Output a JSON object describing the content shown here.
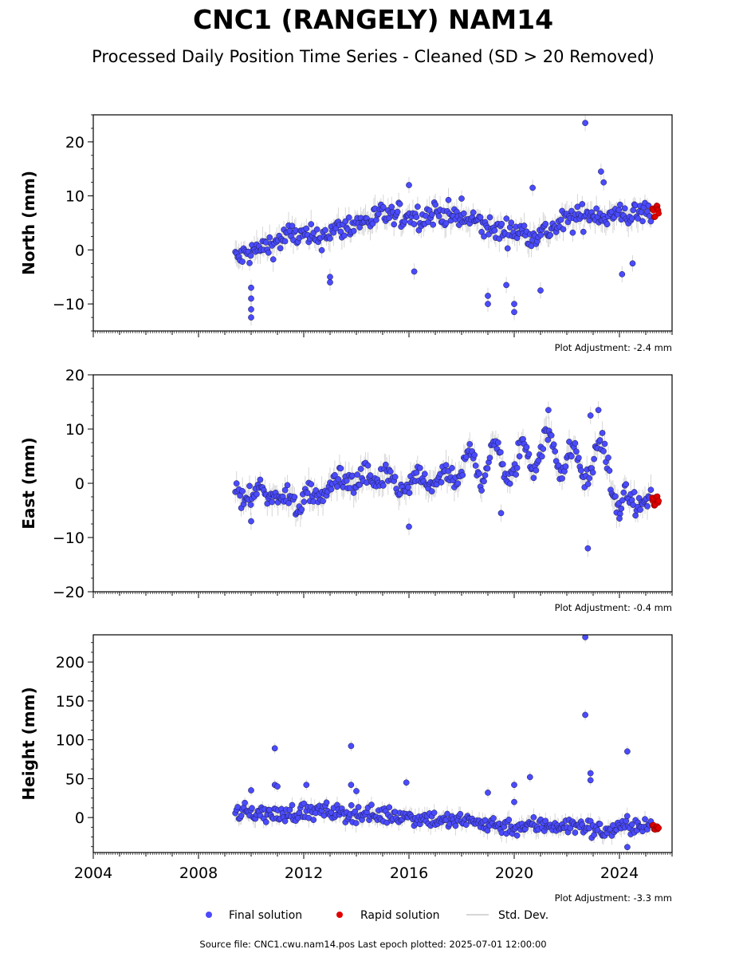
{
  "title": "CNC1 (RANGELY) NAM14",
  "subtitle": "Processed Daily Position Time Series - Cleaned (SD > 20 Removed)",
  "footer": "Source file: CNC1.cwu.nam14.pos  Last epoch plotted: 2025-07-01 12:00:00",
  "legend": {
    "final_label": "Final solution",
    "rapid_label": "Rapid solution",
    "std_label": "Std. Dev."
  },
  "colors": {
    "final": "#4a4aff",
    "rapid": "#e00000",
    "std": "#b4b4b4",
    "marker_edge": "#1a1a40"
  },
  "chart_data": [
    {
      "type": "scatter",
      "ylabel": "North (mm)",
      "adjustment": "Plot Adjustment: -2.4 mm",
      "xlim": [
        2004,
        2026
      ],
      "ylim": [
        -15,
        25
      ],
      "yticks": [
        -10,
        0,
        10,
        20
      ],
      "ytick_labels": [
        "−10",
        "0",
        "10",
        "20"
      ],
      "series": [
        {
          "name": "Final solution",
          "style": "final",
          "x": [
            2009.5,
            2010.0,
            2010.5,
            2011.0,
            2011.5,
            2012.0,
            2012.5,
            2013.0,
            2013.5,
            2014.0,
            2014.5,
            2015.0,
            2015.5,
            2016.0,
            2016.5,
            2017.0,
            2017.5,
            2018.0,
            2018.5,
            2019.0,
            2019.5,
            2020.0,
            2020.5,
            2021.0,
            2021.5,
            2022.0,
            2022.5,
            2023.0,
            2023.5,
            2024.0,
            2024.5,
            2025.0
          ],
          "y": [
            -1.5,
            -0.5,
            0.5,
            1.5,
            3.0,
            2.5,
            2.0,
            3.5,
            4.0,
            5.0,
            5.5,
            6.5,
            6.0,
            6.5,
            6.0,
            7.0,
            6.5,
            5.5,
            5.5,
            4.0,
            3.5,
            3.5,
            3.0,
            3.0,
            4.0,
            5.5,
            6.0,
            7.0,
            6.0,
            6.5,
            6.5,
            7.0
          ]
        },
        {
          "name": "Rapid solution",
          "style": "rapid",
          "x": [
            2025.25,
            2025.32,
            2025.4,
            2025.45
          ],
          "y": [
            7.5,
            6.5,
            8.0,
            7.0
          ]
        }
      ],
      "outliers": {
        "x": [
          2010.0,
          2010.0,
          2010.0,
          2010.0,
          2013.0,
          2013.0,
          2016.0,
          2016.2,
          2018.0,
          2019.0,
          2019.0,
          2019.7,
          2020.0,
          2020.0,
          2020.7,
          2021.0,
          2022.7,
          2023.3,
          2023.4,
          2024.1,
          2024.5
        ],
        "y": [
          -12.5,
          -11.0,
          -9.0,
          -7.0,
          -6.0,
          -5.0,
          12.0,
          -4.0,
          9.5,
          -10.0,
          -8.5,
          -6.5,
          -11.5,
          -10.0,
          11.5,
          -7.5,
          23.5,
          14.5,
          12.5,
          -4.5,
          -2.5
        ]
      }
    },
    {
      "type": "scatter",
      "ylabel": "East (mm)",
      "adjustment": "Plot Adjustment: -0.4 mm",
      "xlim": [
        2004,
        2026
      ],
      "ylim": [
        -20,
        20
      ],
      "yticks": [
        -20,
        -10,
        0,
        10,
        20
      ],
      "ytick_labels": [
        "−20",
        "−10",
        "0",
        "10",
        "20"
      ],
      "series": [
        {
          "name": "Final solution",
          "style": "final",
          "x": [
            2009.5,
            2010.0,
            2010.5,
            2011.0,
            2011.5,
            2012.0,
            2012.5,
            2013.0,
            2013.5,
            2014.0,
            2014.5,
            2015.0,
            2015.5,
            2016.0,
            2016.5,
            2017.0,
            2017.5,
            2018.0,
            2018.5,
            2019.0,
            2019.5,
            2020.0,
            2020.5,
            2021.0,
            2021.5,
            2022.0,
            2022.5,
            2023.0,
            2023.5,
            2024.0,
            2024.5,
            2025.0
          ],
          "y": [
            -2.0,
            -2.5,
            -1.5,
            -2.5,
            -3.0,
            -3.5,
            -2.0,
            -1.0,
            1.5,
            0.0,
            1.0,
            0.5,
            0.0,
            -1.0,
            1.0,
            0.0,
            1.5,
            1.0,
            4.5,
            3.0,
            5.0,
            1.5,
            6.0,
            5.5,
            7.0,
            4.0,
            3.0,
            4.0,
            5.5,
            -4.0,
            -3.5,
            -3.0
          ]
        },
        {
          "name": "Rapid solution",
          "style": "rapid",
          "x": [
            2025.25,
            2025.32,
            2025.4,
            2025.45
          ],
          "y": [
            -3.0,
            -4.0,
            -2.5,
            -3.5
          ]
        }
      ],
      "outliers": {
        "x": [
          2010.0,
          2016.0,
          2019.5,
          2021.3,
          2022.8,
          2022.9,
          2023.2,
          2024.0
        ],
        "y": [
          -7.0,
          -8.0,
          -5.5,
          13.5,
          -12.0,
          12.5,
          13.5,
          -6.5
        ]
      }
    },
    {
      "type": "scatter",
      "ylabel": "Height (mm)",
      "adjustment": "Plot Adjustment: -3.3 mm",
      "xlim": [
        2004,
        2026
      ],
      "ylim": [
        -45,
        235
      ],
      "yticks": [
        0,
        50,
        100,
        150,
        200
      ],
      "ytick_labels": [
        "0",
        "50",
        "100",
        "150",
        "200"
      ],
      "xticks": [
        2004,
        2008,
        2012,
        2016,
        2020,
        2024
      ],
      "xtick_labels": [
        "2004",
        "2008",
        "2012",
        "2016",
        "2020",
        "2024"
      ],
      "series": [
        {
          "name": "Final solution",
          "style": "final",
          "x": [
            2009.5,
            2010.0,
            2010.5,
            2011.0,
            2011.5,
            2012.0,
            2012.5,
            2013.0,
            2013.5,
            2014.0,
            2014.5,
            2015.0,
            2015.5,
            2016.0,
            2016.5,
            2017.0,
            2017.5,
            2018.0,
            2018.5,
            2019.0,
            2019.5,
            2020.0,
            2020.5,
            2021.0,
            2021.5,
            2022.0,
            2022.5,
            2023.0,
            2023.5,
            2024.0,
            2024.5,
            2025.0
          ],
          "y": [
            5,
            8,
            5,
            3,
            6,
            8,
            7,
            8,
            5,
            6,
            4,
            3,
            3,
            1,
            0,
            -2,
            -5,
            -4,
            -6,
            -8,
            -10,
            -12,
            -11,
            -10,
            -9,
            -12,
            -10,
            -15,
            -18,
            -12,
            -10,
            -12
          ]
        },
        {
          "name": "Rapid solution",
          "style": "rapid",
          "x": [
            2025.25,
            2025.32,
            2025.4,
            2025.45
          ],
          "y": [
            -10,
            -15,
            -12,
            -14
          ]
        }
      ],
      "outliers": {
        "x": [
          2010.0,
          2010.9,
          2010.9,
          2011.0,
          2012.1,
          2013.8,
          2013.8,
          2014.0,
          2015.9,
          2019.0,
          2020.0,
          2020.0,
          2020.6,
          2022.7,
          2022.7,
          2022.9,
          2022.9,
          2024.3,
          2024.3
        ],
        "y": [
          35,
          89,
          42,
          40,
          42,
          92,
          42,
          34,
          45,
          32,
          42,
          20,
          52,
          232,
          132,
          57,
          48,
          85,
          -38
        ]
      }
    }
  ]
}
